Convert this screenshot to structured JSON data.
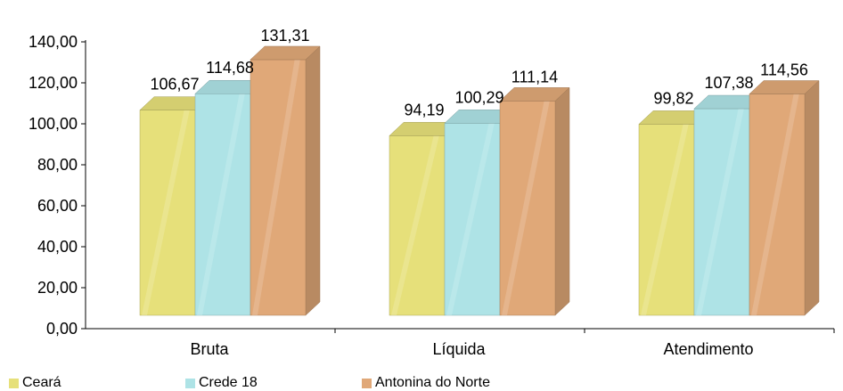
{
  "chart_data": {
    "type": "bar",
    "categories": [
      "Bruta",
      "Líquida",
      "Atendimento"
    ],
    "series": [
      {
        "name": "Ceará",
        "values": [
          106.67,
          94.19,
          99.82
        ],
        "labels": [
          "106,67",
          "94,19",
          "99,82"
        ],
        "color": "#e6e07a"
      },
      {
        "name": "Crede 18",
        "values": [
          114.68,
          100.29,
          107.38
        ],
        "labels": [
          "114,68",
          "100,29",
          "107,38"
        ],
        "color": "#aee3e6"
      },
      {
        "name": "Antonina do Norte",
        "values": [
          131.31,
          111.14,
          114.56
        ],
        "labels": [
          "131,31",
          "111,14",
          "114,56"
        ],
        "color": "#e0a878"
      }
    ],
    "ylim": [
      0,
      140
    ],
    "yticks": [
      0,
      20,
      40,
      60,
      80,
      100,
      120,
      140
    ],
    "ytick_labels": [
      "0,00",
      "20,00",
      "40,00",
      "60,00",
      "80,00",
      "100,00",
      "120,00",
      "140,00"
    ],
    "title": "",
    "xlabel": "",
    "ylabel": "",
    "legend_position": "bottom",
    "style": "3d-bar",
    "grid": false
  }
}
